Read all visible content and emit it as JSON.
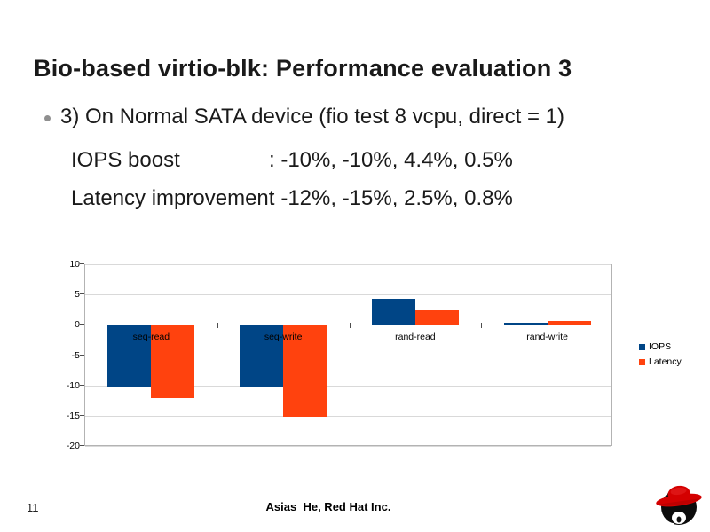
{
  "slide": {
    "title": "Bio-based virtio-blk: Performance evaluation 3",
    "bullet": "3) On Normal SATA device (fio test 8 vcpu, direct = 1)",
    "metrics": [
      {
        "label": "IOPS boost",
        "value": ": -10%, -10%, 4.4%, 0.5%"
      },
      {
        "label": "Latency improvement",
        "value": ": -12%, -15%, 2.5%, 0.8%"
      }
    ],
    "footer": {
      "page_number": "11",
      "credit": "Asias  He, Red Hat Inc."
    },
    "logo": "redhat-shadowman-icon",
    "background_color": "#ffffff",
    "text_color": "#1a1a1a",
    "bullet_color": "#8f8f8f"
  },
  "chart_data": {
    "type": "bar",
    "title": "",
    "xlabel": "",
    "ylabel": "",
    "categories": [
      "seq-read",
      "seq-write",
      "rand-read",
      "rand-write"
    ],
    "series": [
      {
        "name": "IOPS",
        "color": "#004586",
        "values": [
          -10,
          -10,
          4.4,
          0.5
        ]
      },
      {
        "name": "Latency",
        "color": "#FF420E",
        "values": [
          -12,
          -15,
          2.5,
          0.8
        ]
      }
    ],
    "ylim": [
      -20,
      10
    ],
    "yticks": [
      10,
      5,
      0,
      -5,
      -10,
      -15,
      -20
    ],
    "grid": true,
    "legend_position": "right",
    "gridline_color": "#d9d9d9",
    "plot_border_color": "#b3b3b3",
    "axis_text_color": "#000000"
  }
}
